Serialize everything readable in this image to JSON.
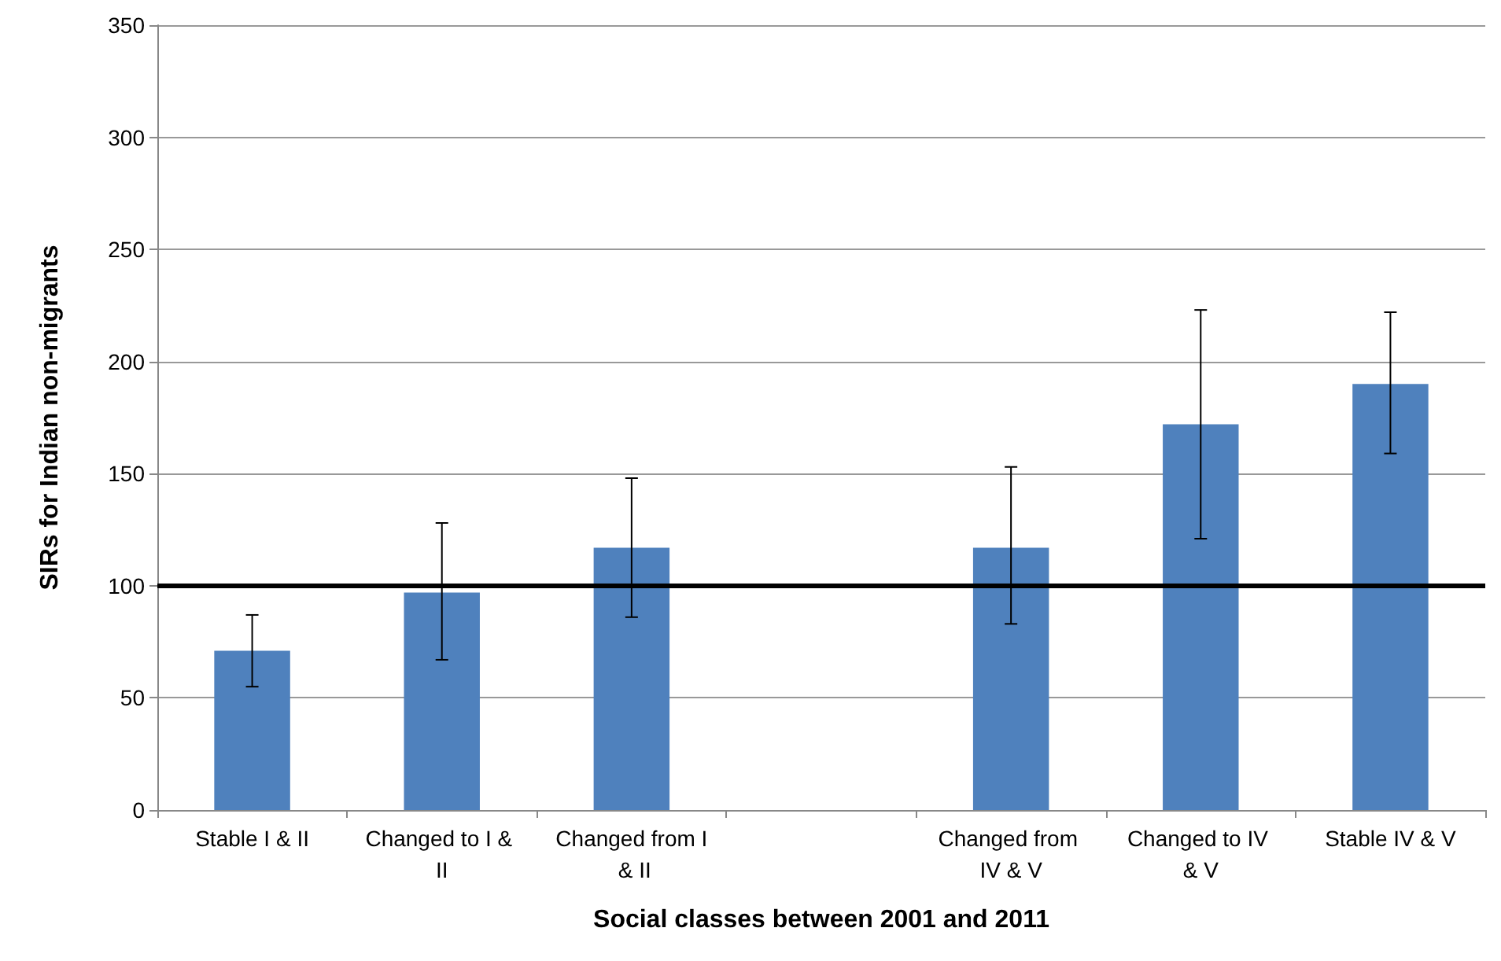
{
  "chart_data": {
    "type": "bar",
    "xlabel": "Social classes between 2001 and 2011",
    "ylabel": "SIRs for Indian non-migrants",
    "categories": [
      "Stable I & II",
      "Changed to I & II",
      "Changed from I & II",
      null,
      "Changed from IV & V",
      "Changed to IV & V",
      "Stable IV & V"
    ],
    "values": [
      71,
      97,
      117,
      null,
      117,
      172,
      190
    ],
    "errors": [
      [
        55,
        87
      ],
      [
        67,
        128
      ],
      [
        86,
        148
      ],
      null,
      [
        83,
        153
      ],
      [
        121,
        223
      ],
      [
        159,
        222
      ]
    ],
    "color": "#4f81bd",
    "ylim": [
      0,
      350
    ],
    "yticks": [
      0,
      50,
      100,
      150,
      200,
      250,
      300,
      350
    ],
    "grid": "y",
    "ref_lines": [
      {
        "axis": "y",
        "value": 100,
        "color": "#000000",
        "line_style": "solid"
      }
    ]
  }
}
